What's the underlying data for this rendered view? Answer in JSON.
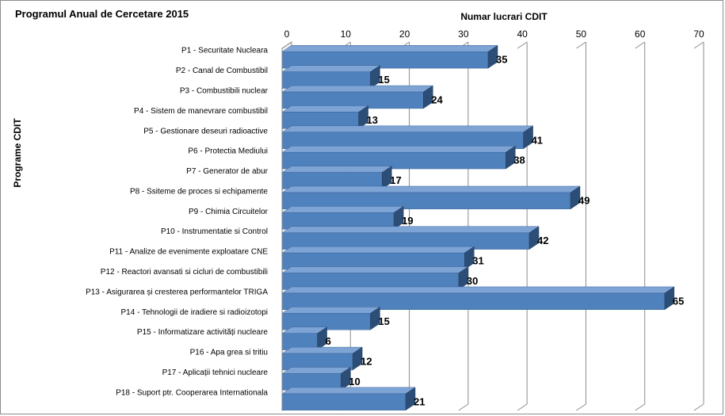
{
  "chart_data": {
    "type": "bar",
    "orientation": "horizontal",
    "title": "Programul Anual de Cercetare 2015",
    "xlabel": "Numar lucrari CDIT",
    "ylabel": "Programe CDIT",
    "xlim": [
      0,
      70
    ],
    "ticks": [
      "0",
      "10",
      "20",
      "30",
      "40",
      "50",
      "60",
      "70"
    ],
    "grid": true,
    "legend": "none",
    "bar_color": "#4f81bd",
    "bar_side_color": "#2c4d75",
    "bar_top_color": "#7ea4d6",
    "categories": [
      "P1 - Securitate Nucleara",
      "P2 - Canal de Combustibil",
      "P3 - Combustibili nuclear",
      "P4 - Sistem de manevrare combustibil",
      "P5 - Gestionare deseuri radioactive",
      "P6 - Protectia Mediului",
      "P7 - Generator de abur",
      "P8 - Ssiteme de proces si echipamente",
      "P9 - Chimia Circuitelor",
      "P10 - Instrumentatie si Control",
      "P11 - Analize de evenimente exploatare CNE",
      "P12 - Reactori avansati si cicluri de combustibili",
      "P13 - Asigurarea și cresterea performantelor TRIGA",
      "P14 - Tehnologii de iradiere si radioizotopi",
      "P15 - Informatizare activități nucleare",
      "P16 - Apa grea si tritiu",
      "P17 - Aplicații tehnici nucleare",
      "P18 - Suport ptr. Cooperarea Internationala"
    ],
    "values": [
      35,
      15,
      24,
      13,
      41,
      38,
      17,
      49,
      19,
      42,
      31,
      30,
      65,
      15,
      6,
      12,
      10,
      21
    ]
  }
}
